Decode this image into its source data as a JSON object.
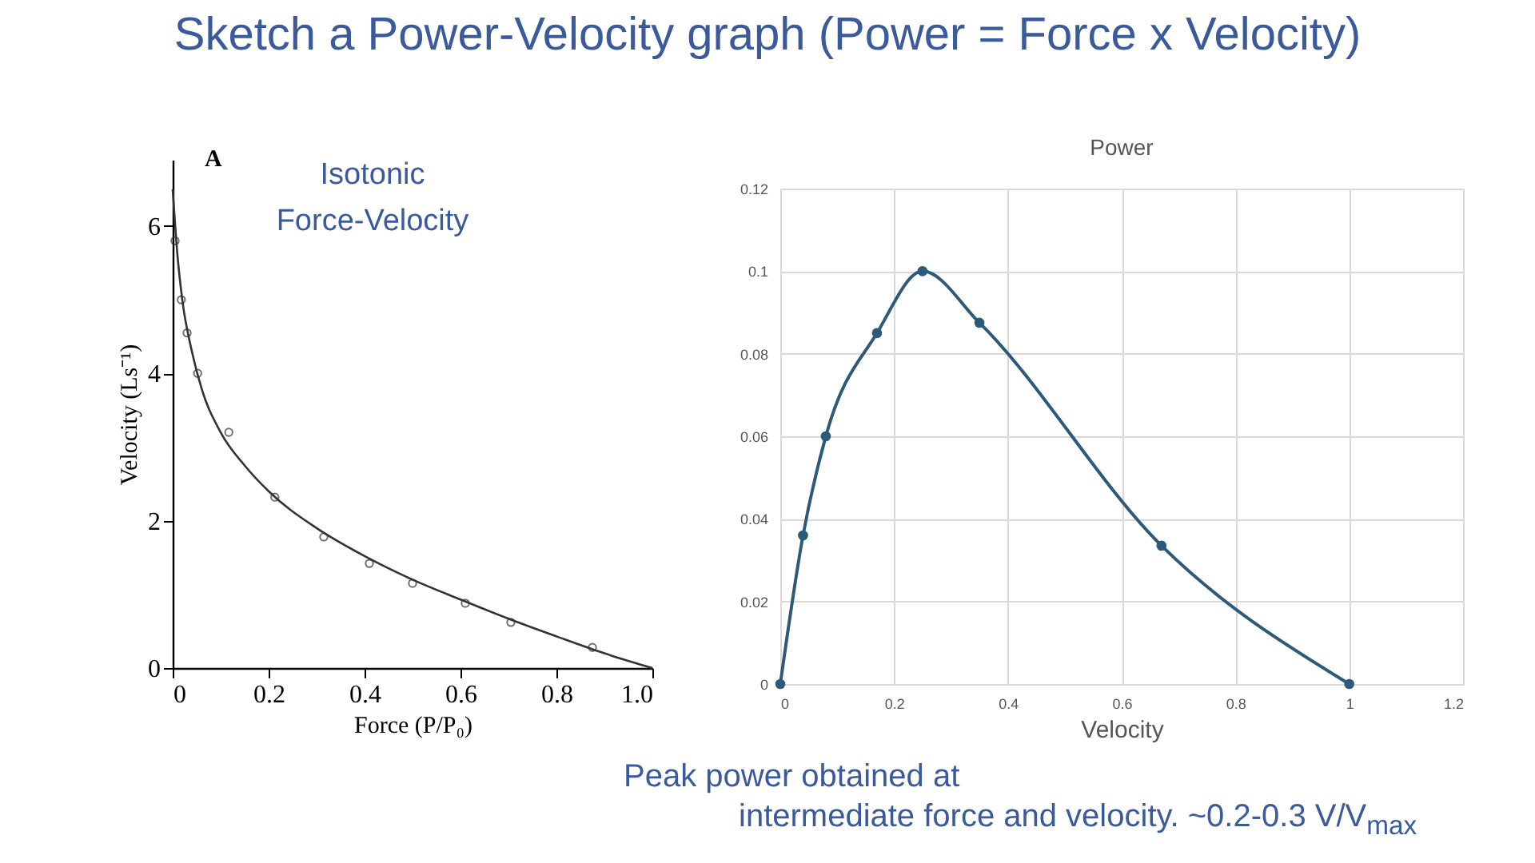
{
  "chart_data": [
    {
      "type": "scatter",
      "title": "Sketch a Power-Velocity graph (Power = Force x Velocity)",
      "xlabel": "Force (P/P₀)",
      "ylabel": "Velocity (Ls⁻¹)",
      "annotations": [
        "A",
        "Isotonic\nForce-Velocity"
      ],
      "xlim": [
        0,
        1
      ],
      "ylim": [
        0,
        6.9
      ],
      "xticks": [
        0,
        0.2,
        0.4,
        0.6,
        0.8,
        {
          "value": 1,
          "label": "1.0"
        }
      ],
      "yticks": [
        0,
        2,
        4,
        6
      ],
      "grid": false,
      "series": [
        {
          "type": "line",
          "color": "#333333",
          "x": [
            0,
            0.01,
            0.02,
            0.04,
            0.06,
            0.1,
            0.15,
            0.2,
            0.3,
            0.4,
            0.5,
            0.6,
            0.7,
            0.8,
            0.9,
            1.0
          ],
          "values": [
            6.5,
            5.6,
            5.0,
            4.3,
            3.8,
            3.2,
            2.75,
            2.4,
            1.9,
            1.52,
            1.2,
            0.93,
            0.67,
            0.43,
            0.2,
            0
          ]
        },
        {
          "color": "#333333",
          "marker": "circle",
          "x": [
            0.005,
            0.018,
            0.03,
            0.052,
            0.117,
            0.213,
            0.315,
            0.41,
            0.5,
            0.61,
            0.705,
            0.875
          ],
          "values": [
            5.8,
            5.0,
            4.55,
            4.0,
            3.2,
            2.32,
            1.78,
            1.42,
            1.15,
            0.88,
            0.62,
            0.28
          ]
        }
      ]
    },
    {
      "type": "line",
      "title": "Power",
      "xlabel": "Velocity",
      "annotations": [
        "Peak power obtained at\nintermediate force and velocity. ~0.2-0.3 V/V$_{max}$"
      ],
      "xlim": [
        0,
        1.2
      ],
      "ylim": [
        0,
        0.12
      ],
      "xticks": [
        0,
        0.2,
        0.4,
        0.6,
        0.8,
        1,
        1.2
      ],
      "yticks": [
        0,
        0.02,
        0.04,
        0.06,
        0.08,
        0.1,
        0.12
      ],
      "grid": true,
      "marker": "circle",
      "series": [
        {
          "color": "#2e5a7a",
          "x": [
            0,
            0.04,
            0.08,
            0.17,
            0.25,
            0.35,
            0.67,
            1
          ],
          "values": [
            0,
            0.036,
            0.06,
            0.085,
            0.1,
            0.0875,
            0.0335,
            0
          ]
        }
      ]
    }
  ]
}
